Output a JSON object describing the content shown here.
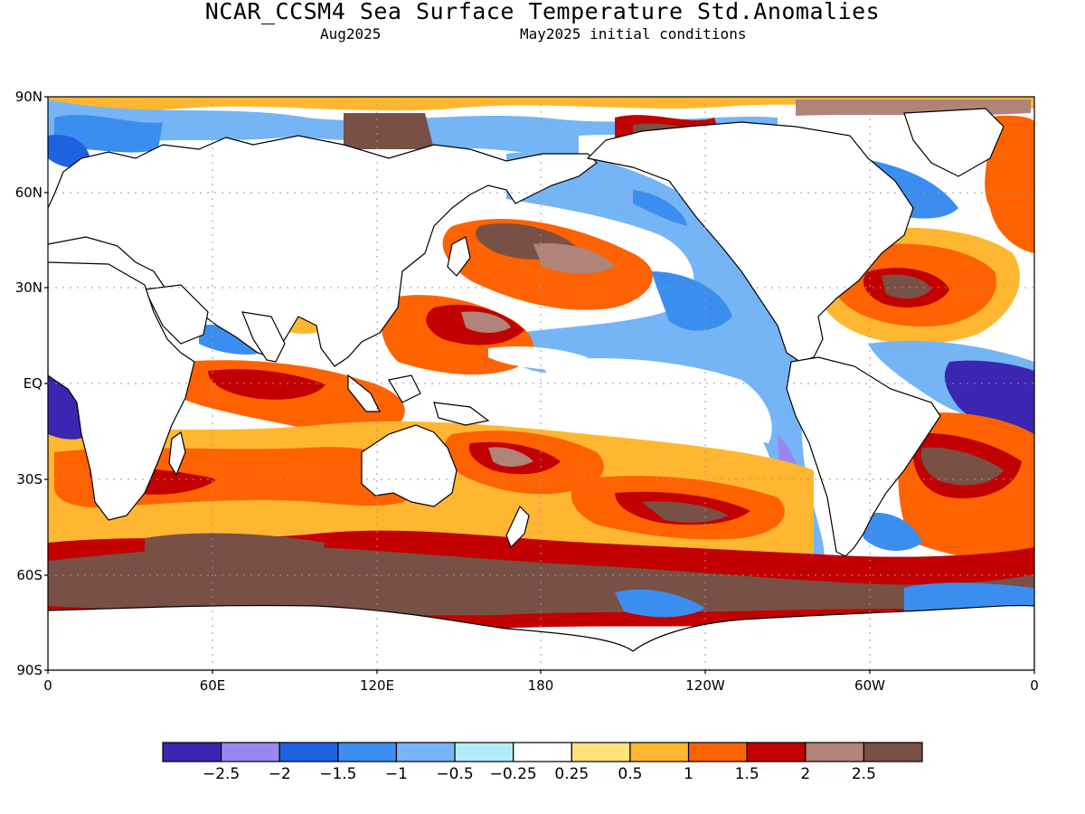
{
  "title": "NCAR_CCSM4 Sea Surface Temperature Std.Anomalies",
  "subtitle_left": "Aug2025",
  "subtitle_right": "May2025 initial conditions",
  "lat_labels": [
    "90N",
    "60N",
    "30N",
    "EQ",
    "30S",
    "60S",
    "90S"
  ],
  "lon_labels": [
    "0",
    "60E",
    "120E",
    "180",
    "120W",
    "60W",
    "0"
  ],
  "colorbar": {
    "colors": [
      "#3a26b0",
      "#9b86f0",
      "#1f62e0",
      "#3b8ef0",
      "#75b5f5",
      "#b2ecf8",
      "#ffffff",
      "#ffe37a",
      "#ffb732",
      "#ff6200",
      "#c20000",
      "#b08478",
      "#785046"
    ],
    "labels": [
      "−2.5",
      "−2",
      "−1.5",
      "−1",
      "−0.5",
      "−0.25",
      "0.25",
      "0.5",
      "1",
      "1.5",
      "2",
      "2.5"
    ]
  },
  "palette": {
    "land": "#ffffff",
    "ocean_neutral": "#ffffff"
  }
}
